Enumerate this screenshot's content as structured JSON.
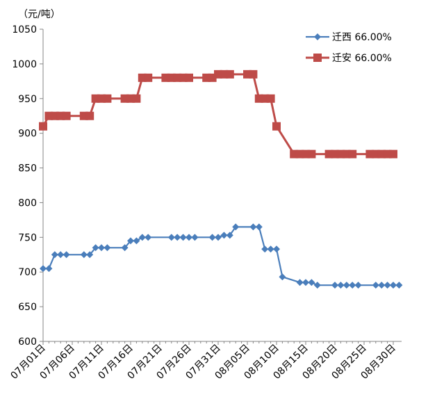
{
  "chart_data": {
    "type": "line",
    "unit_label": "（元/吨）",
    "ylim": [
      600,
      1050
    ],
    "yticks": [
      600,
      650,
      700,
      750,
      800,
      850,
      900,
      950,
      1000,
      1050
    ],
    "x_tick_days": [
      1,
      6,
      11,
      16,
      21,
      26,
      31,
      36,
      41,
      46,
      51,
      56,
      61
    ],
    "x_tick_labels": [
      "07月01日",
      "07月06日",
      "07月11日",
      "07月16日",
      "07月21日",
      "07月26日",
      "07月31日",
      "08月05日",
      "08月10日",
      "08月15日",
      "08月20日",
      "08月25日",
      "08月30日"
    ],
    "x_domain_days": [
      1,
      61
    ],
    "legend_position": "top-right",
    "series": [
      {
        "name": "迁西 66.00%",
        "color": "#4a7ebb",
        "marker": "diamond",
        "points": [
          [
            1,
            705
          ],
          [
            2,
            705
          ],
          [
            3,
            725
          ],
          [
            4,
            725
          ],
          [
            5,
            725
          ],
          [
            8,
            725
          ],
          [
            9,
            725
          ],
          [
            10,
            735
          ],
          [
            11,
            735
          ],
          [
            12,
            735
          ],
          [
            15,
            735
          ],
          [
            16,
            745
          ],
          [
            17,
            745
          ],
          [
            18,
            750
          ],
          [
            19,
            750
          ],
          [
            23,
            750
          ],
          [
            24,
            750
          ],
          [
            25,
            750
          ],
          [
            26,
            750
          ],
          [
            27,
            750
          ],
          [
            30,
            750
          ],
          [
            31,
            750
          ],
          [
            32,
            753
          ],
          [
            33,
            753
          ],
          [
            34,
            765
          ],
          [
            37,
            765
          ],
          [
            38,
            765
          ],
          [
            39,
            733
          ],
          [
            40,
            733
          ],
          [
            41,
            733
          ],
          [
            42,
            693
          ],
          [
            45,
            685
          ],
          [
            46,
            685
          ],
          [
            47,
            685
          ],
          [
            48,
            681
          ],
          [
            51,
            681
          ],
          [
            52,
            681
          ],
          [
            53,
            681
          ],
          [
            54,
            681
          ],
          [
            55,
            681
          ],
          [
            58,
            681
          ],
          [
            59,
            681
          ],
          [
            60,
            681
          ],
          [
            61,
            681
          ],
          [
            62,
            681
          ]
        ]
      },
      {
        "name": "迁安 66.00%",
        "color": "#be4b48",
        "marker": "square",
        "points": [
          [
            1,
            910
          ],
          [
            2,
            925
          ],
          [
            3,
            925
          ],
          [
            4,
            925
          ],
          [
            5,
            925
          ],
          [
            8,
            925
          ],
          [
            9,
            925
          ],
          [
            10,
            950
          ],
          [
            11,
            950
          ],
          [
            12,
            950
          ],
          [
            15,
            950
          ],
          [
            16,
            950
          ],
          [
            17,
            950
          ],
          [
            18,
            980
          ],
          [
            19,
            980
          ],
          [
            22,
            980
          ],
          [
            23,
            980
          ],
          [
            24,
            980
          ],
          [
            25,
            980
          ],
          [
            26,
            980
          ],
          [
            29,
            980
          ],
          [
            30,
            980
          ],
          [
            31,
            985
          ],
          [
            32,
            985
          ],
          [
            33,
            985
          ],
          [
            36,
            985
          ],
          [
            37,
            985
          ],
          [
            38,
            950
          ],
          [
            39,
            950
          ],
          [
            40,
            950
          ],
          [
            41,
            910
          ],
          [
            44,
            870
          ],
          [
            45,
            870
          ],
          [
            46,
            870
          ],
          [
            47,
            870
          ],
          [
            50,
            870
          ],
          [
            51,
            870
          ],
          [
            52,
            870
          ],
          [
            53,
            870
          ],
          [
            54,
            870
          ],
          [
            57,
            870
          ],
          [
            58,
            870
          ],
          [
            59,
            870
          ],
          [
            60,
            870
          ],
          [
            61,
            870
          ]
        ]
      }
    ]
  }
}
